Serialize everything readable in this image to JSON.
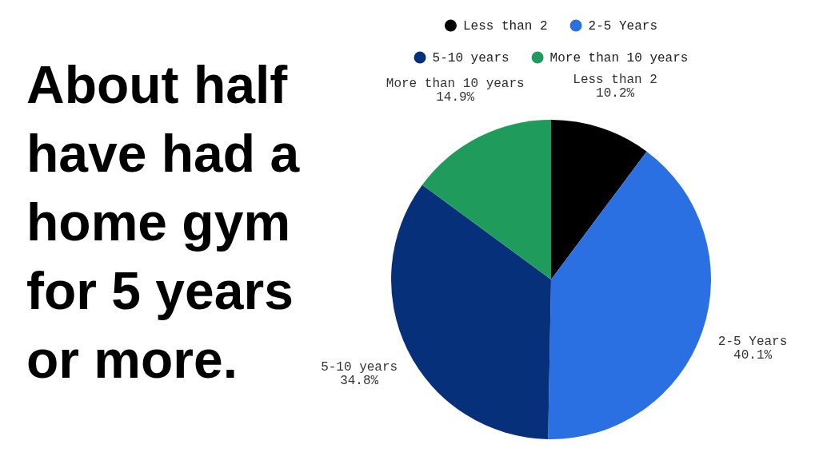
{
  "chart_data": {
    "type": "pie",
    "title": "About half have had a home gym for 5 years or more.",
    "categories": [
      "Less than 2",
      "2-5 Years",
      "5-10 years",
      "More than 10 years"
    ],
    "values": [
      10.2,
      40.1,
      34.8,
      14.9
    ],
    "value_labels": [
      "10.2%",
      "40.1%",
      "34.8%",
      "14.9%"
    ],
    "colors": [
      "#000000",
      "#2b70e3",
      "#06317a",
      "#1f9b5c"
    ],
    "legend": "top"
  }
}
